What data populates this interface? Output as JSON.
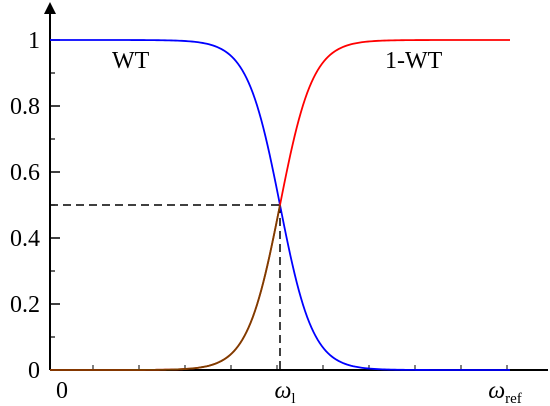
{
  "chart_data": {
    "type": "line",
    "xlim": [
      0,
      1
    ],
    "ylim": [
      0,
      1
    ],
    "y_ticks": [
      {
        "value": 0,
        "label": "0"
      },
      {
        "value": 0.2,
        "label": "0.2"
      },
      {
        "value": 0.4,
        "label": "0.4"
      },
      {
        "value": 0.6,
        "label": "0.6"
      },
      {
        "value": 0.8,
        "label": "0.8"
      },
      {
        "value": 1,
        "label": "1"
      }
    ],
    "x_ticks": [
      {
        "value": 0,
        "label": "0",
        "sub": ""
      },
      {
        "value": 0.5,
        "label": "ω",
        "sub": "l"
      },
      {
        "value": 1,
        "label": "ω",
        "sub": "ref"
      }
    ],
    "series": [
      {
        "name": "WT",
        "color": "#0000ff",
        "kind": "falling",
        "center": 0.5,
        "steepness": 28
      },
      {
        "name": "1-WT",
        "color": "#ff0000",
        "kind": "rising",
        "center": 0.5,
        "steepness": 28
      }
    ],
    "product_curve_color": "#7b3f00",
    "reference_point": {
      "x": 0.5,
      "y": 0.5
    },
    "grid": false
  }
}
